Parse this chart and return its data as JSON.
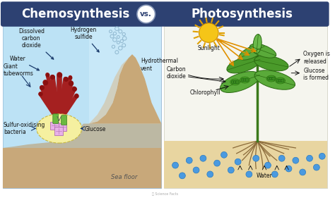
{
  "title_left": "Chemosynthesis",
  "title_vs": "vs.",
  "title_right": "Photosynthesis",
  "title_bg_color": "#2d4172",
  "title_text_color": "#ffffff",
  "vs_circle_color": "#ffffff",
  "vs_text_color": "#2d4172",
  "bg_color": "#ffffff",
  "left_panel_bg": "#c8e8f8",
  "sea_floor_color": "#c8a87a",
  "tube_worm_color": "#a52020",
  "bacteria_blob_color": "#f5f0a0",
  "bacteria_blob_edge": "#c8b840",
  "glucose_cube_color": "#e8b0e8",
  "glucose_cube_edge": "#b070b0",
  "bacteria_rod_color": "#6ab840",
  "bacteria_rod_edge": "#3a8020",
  "bubble_edge_color": "#90b8d0",
  "arrow_color": "#1a3a6b",
  "sun_color": "#f5c518",
  "sun_ray_color": "#e0a000",
  "plant_stem_color": "#3a7a1a",
  "leaf_color_1": "#5aaa3a",
  "leaf_color_2": "#4a9a2a",
  "leaf_edge_color": "#2a6a10",
  "chloro_color": "#3a8a20",
  "chloro_dot_color": "#1a5a10",
  "root_color": "#8a6a3a",
  "water_dot_color": "#4a9ae0",
  "water_dot_edge": "#2a7ac0",
  "soil_color": "#e8d5a0",
  "font_size_title": 12,
  "font_size_label": 5.5,
  "watermark_color": "#aaaaaa"
}
